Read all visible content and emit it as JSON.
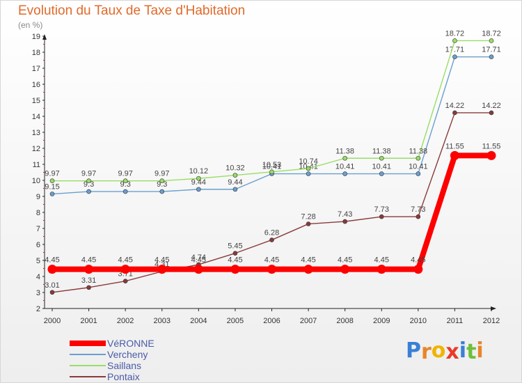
{
  "header": {
    "title": "Evolution du Taux de Taxe d'Habitation",
    "subtitle": "(en %)"
  },
  "brand": {
    "letters": [
      "P",
      "r",
      "o",
      "x",
      "i",
      "t",
      "i"
    ],
    "colors": [
      "#3a7fd6",
      "#e8852a",
      "#f0b400",
      "#e83a2a",
      "#3a7fd6",
      "#6fbf3a",
      "#e8852a"
    ]
  },
  "chart_data": {
    "type": "line",
    "title": "Evolution du Taux de Taxe d'Habitation",
    "subtitle": "(en %)",
    "x": [
      "2000",
      "2001",
      "2002",
      "2003",
      "2004",
      "2005",
      "2006",
      "2007",
      "2008",
      "2009",
      "2010",
      "2011",
      "2012"
    ],
    "ylim": [
      2,
      19
    ],
    "yticks": [
      "2",
      "3",
      "4",
      "5",
      "6",
      "7",
      "8",
      "9",
      "10",
      "11",
      "12",
      "13",
      "14",
      "15",
      "16",
      "17",
      "18",
      "19"
    ],
    "grid": false,
    "legend_position": "bottom-left",
    "series": [
      {
        "name": "VéRONNE",
        "color": "#ff0000",
        "values": [
          4.45,
          4.45,
          4.45,
          4.45,
          4.45,
          4.45,
          4.45,
          4.45,
          4.45,
          4.45,
          4.45,
          11.55,
          11.55
        ],
        "labels": [
          "4.45",
          "4.45",
          "4.45",
          "4.45",
          "4.45",
          "4.45",
          "4.45",
          "4.45",
          "4.45",
          "4.45",
          "4.45",
          "11.55",
          "11.55"
        ]
      },
      {
        "name": "Vercheny",
        "color": "#6a9fcf",
        "values": [
          9.15,
          9.3,
          9.3,
          9.3,
          9.44,
          9.44,
          10.41,
          10.41,
          10.41,
          10.41,
          10.41,
          17.71,
          17.71
        ],
        "labels": [
          "9.15",
          "9.3",
          "9.3",
          "9.3",
          "9.44",
          "9.44",
          "10.41",
          "10.41",
          "10.41",
          "10.41",
          "10.41",
          "17.71",
          "17.71"
        ]
      },
      {
        "name": "Saillans",
        "color": "#99dd66",
        "values": [
          9.97,
          9.97,
          9.97,
          9.97,
          10.12,
          10.32,
          10.53,
          10.74,
          11.38,
          11.38,
          11.38,
          18.72,
          18.72
        ],
        "labels": [
          "9.97",
          "9.97",
          "9.97",
          "9.97",
          "10.12",
          "10.32",
          "10.53",
          "10.74",
          "11.38",
          "11.38",
          "11.38",
          "18.72",
          "18.72"
        ]
      },
      {
        "name": "Pontaix",
        "color": "#8a3a3a",
        "values": [
          3.01,
          3.31,
          3.71,
          4.31,
          4.74,
          5.45,
          6.28,
          7.28,
          7.43,
          7.73,
          7.73,
          14.22,
          14.22
        ],
        "labels": [
          "3.01",
          "3.31",
          "3.71",
          "4.31",
          "4.74",
          "5.45",
          "6.28",
          "7.28",
          "7.43",
          "7.73",
          "7.73",
          "14.22",
          "14.22"
        ]
      }
    ]
  }
}
